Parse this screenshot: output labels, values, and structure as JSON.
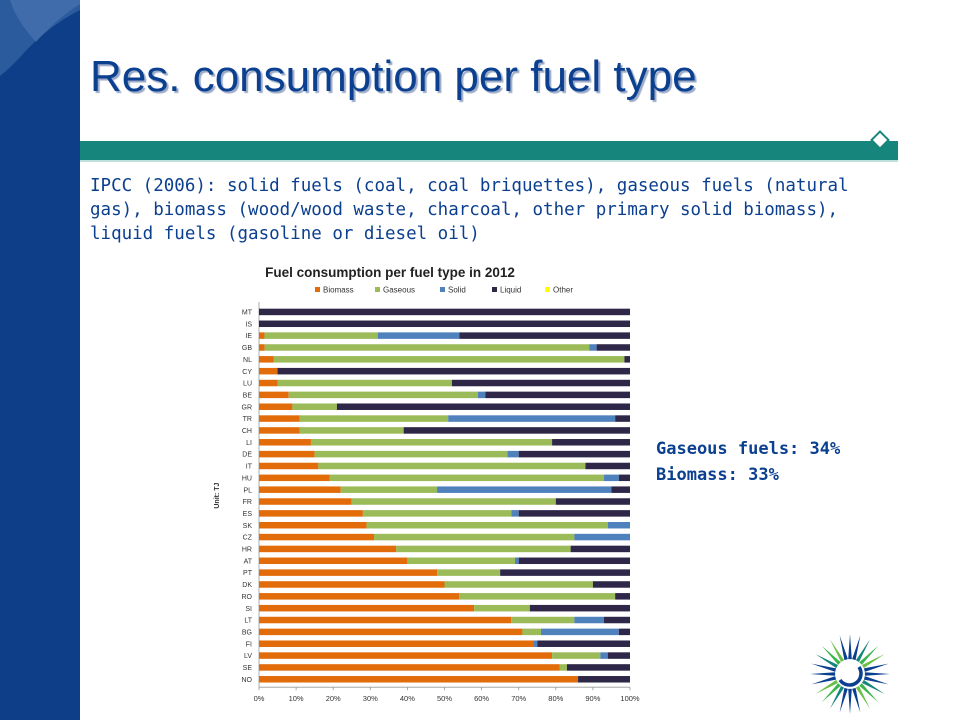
{
  "slide": {
    "title": "Res. consumption per fuel type",
    "intro": "IPCC (2006): solid fuels (coal, coal briquettes), gaseous fuels (natural gas), biomass (wood/wood waste, charcoal, other primary solid biomass), liquid fuels (gasoline or diesel oil)",
    "shares": [
      "Gaseous fuels: 34%",
      "Biomass: 33%"
    ],
    "accent_color": "#0b3f8f",
    "band_color": "#16857c",
    "sidebar_color": "#0d3e87"
  },
  "chart_data": {
    "type": "bar",
    "orientation": "horizontal",
    "stacked": "100%",
    "title": "Fuel consumption per fuel type in 2012",
    "ylabel": "Unit: TJ",
    "xlim": [
      0,
      100
    ],
    "xticks": [
      "0%",
      "10%",
      "20%",
      "30%",
      "40%",
      "50%",
      "60%",
      "70%",
      "80%",
      "90%",
      "100%"
    ],
    "legend_position": "top",
    "categories": [
      "MT",
      "IS",
      "IE",
      "GB",
      "NL",
      "CY",
      "LU",
      "BE",
      "GR",
      "TR",
      "CH",
      "LI",
      "DE",
      "IT",
      "HU",
      "PL",
      "FR",
      "ES",
      "SK",
      "CZ",
      "HR",
      "AT",
      "PT",
      "DK",
      "RO",
      "SI",
      "LT",
      "BG",
      "FI",
      "LV",
      "SE",
      "NO"
    ],
    "series": [
      {
        "name": "Biomass",
        "color": "#e36c0a",
        "values": [
          0,
          0,
          1.5,
          1.5,
          4,
          5,
          5,
          8,
          9,
          11,
          11,
          14,
          15,
          16,
          19,
          22,
          25,
          28,
          29,
          31,
          37,
          40,
          48,
          50,
          54,
          58,
          68,
          71,
          74,
          79,
          81,
          86
        ]
      },
      {
        "name": "Gaseous",
        "color": "#9bbb59",
        "values": [
          0,
          0,
          30.5,
          87.5,
          94.5,
          0,
          47,
          51,
          12,
          40,
          28,
          65,
          52,
          72,
          74,
          26,
          55,
          40,
          65,
          54,
          47,
          29,
          17,
          40,
          42,
          15,
          17,
          5,
          0,
          13,
          2,
          0
        ]
      },
      {
        "name": "Solid",
        "color": "#4f81bd",
        "values": [
          0,
          0,
          22,
          2,
          0,
          0,
          0,
          2,
          0,
          45,
          0,
          0,
          3,
          0,
          4,
          47,
          0,
          2,
          6,
          15,
          0,
          1,
          0,
          0,
          0,
          0,
          8,
          21,
          1,
          2,
          0,
          0
        ]
      },
      {
        "name": "Liquid",
        "color": "#2f2747",
        "values": [
          100,
          100,
          46,
          9,
          1.5,
          95,
          48,
          39,
          79,
          4,
          61,
          21,
          30,
          12,
          3,
          5,
          20,
          30,
          0,
          0,
          16,
          30,
          35,
          10,
          4,
          27,
          7,
          3,
          25,
          6,
          17,
          14
        ]
      },
      {
        "name": "Other",
        "color": "#ffff00",
        "values": [
          0,
          0,
          0,
          0,
          0,
          0,
          0,
          0,
          0,
          0,
          0,
          0,
          0,
          0,
          0,
          0,
          0,
          0,
          0,
          0,
          0,
          0,
          0,
          0,
          0,
          0,
          0,
          0,
          0,
          0,
          0,
          0
        ]
      }
    ]
  }
}
